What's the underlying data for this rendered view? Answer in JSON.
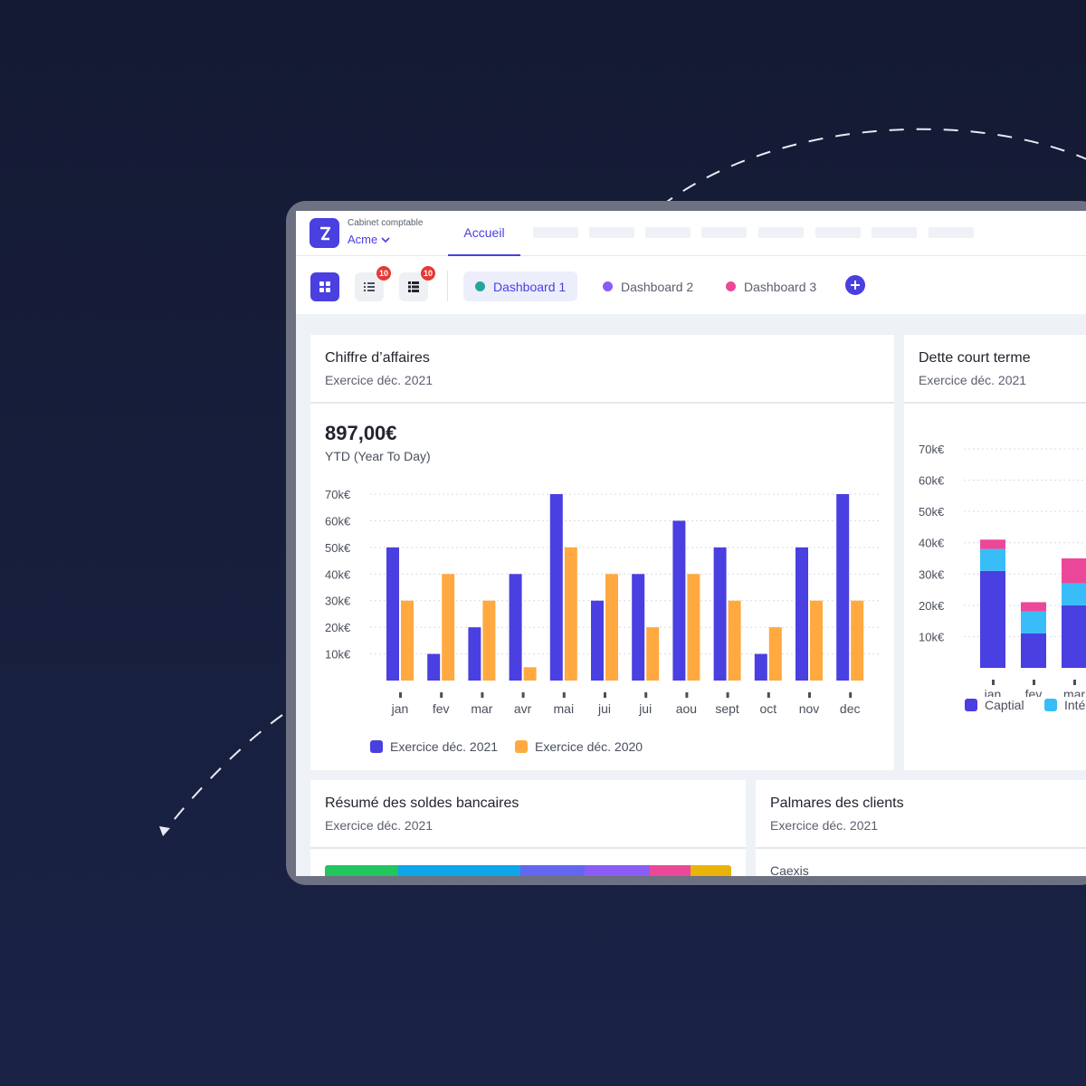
{
  "topbar": {
    "cabinet_label": "Cabinet comptable",
    "company": "Acme",
    "home_tab": "Accueil"
  },
  "toolbar": {
    "list_badge": "10",
    "list2_badge": "10",
    "dashboards": [
      {
        "label": "Dashboard 1",
        "color": "#26a69a"
      },
      {
        "label": "Dashboard 2",
        "color": "#8b5cf6"
      },
      {
        "label": "Dashboard 3",
        "color": "#ec4899"
      }
    ]
  },
  "colors": {
    "accent": "#4a3fe0",
    "series_2021": "#4a3fe0",
    "series_2020": "#ffa940",
    "captial": "#4a3fe0",
    "interets": "#38bdf8",
    "other": "#ec4899"
  },
  "revenue_card": {
    "title": "Chiffre d’affaires",
    "subtitle": "Exercice déc. 2021",
    "kpi": "897,00€",
    "kpi_label": "YTD (Year To Day)",
    "legend_2021": "Exercice déc. 2021",
    "legend_2020": "Exercice déc. 2020"
  },
  "debt_card": {
    "title": "Dette court terme",
    "subtitle": "Exercice déc. 2021",
    "legend_captial": "Captial",
    "legend_interets": "Inté"
  },
  "bank_card": {
    "title": "Résumé des soldes bancaires",
    "subtitle": "Exercice déc. 2021",
    "segments": [
      {
        "color": "#22c55e",
        "share": 18
      },
      {
        "color": "#0ea5e9",
        "share": 30
      },
      {
        "color": "#6366f1",
        "share": 16
      },
      {
        "color": "#8b5cf6",
        "share": 16
      },
      {
        "color": "#ec4899",
        "share": 10
      },
      {
        "color": "#eab308",
        "share": 10
      }
    ]
  },
  "clients_card": {
    "title": "Palmares des clients",
    "subtitle": "Exercice déc. 2021",
    "first_client": "Caexis"
  },
  "chart_data": [
    {
      "type": "bar",
      "title": "Chiffre d’affaires",
      "categories": [
        "jan",
        "fev",
        "mar",
        "avr",
        "mai",
        "jui",
        "jui",
        "aou",
        "sept",
        "oct",
        "nov",
        "dec"
      ],
      "series": [
        {
          "name": "Exercice déc. 2021",
          "values": [
            50,
            10,
            20,
            40,
            70,
            30,
            40,
            60,
            50,
            10,
            50,
            70
          ]
        },
        {
          "name": "Exercice déc. 2020",
          "values": [
            30,
            40,
            30,
            5,
            50,
            40,
            20,
            40,
            30,
            20,
            30,
            30
          ]
        }
      ],
      "yticks": [
        "10k€",
        "20k€",
        "30k€",
        "40k€",
        "50k€",
        "60k€",
        "70k€"
      ],
      "ylim": [
        0,
        70
      ],
      "grid": true,
      "legend": "bottom"
    },
    {
      "type": "bar",
      "stacked": true,
      "title": "Dette court terme",
      "categories": [
        "jan",
        "fev",
        "mar"
      ],
      "series": [
        {
          "name": "Captial",
          "values": [
            31,
            11,
            20
          ]
        },
        {
          "name": "Inté",
          "values": [
            7,
            7,
            7
          ]
        },
        {
          "values": [
            3,
            3,
            8
          ]
        }
      ],
      "yticks": [
        "10k€",
        "20k€",
        "30k€",
        "40k€",
        "50k€",
        "60k€",
        "70k€"
      ],
      "ylim": [
        0,
        70
      ],
      "grid": true,
      "legend": "bottom"
    }
  ]
}
